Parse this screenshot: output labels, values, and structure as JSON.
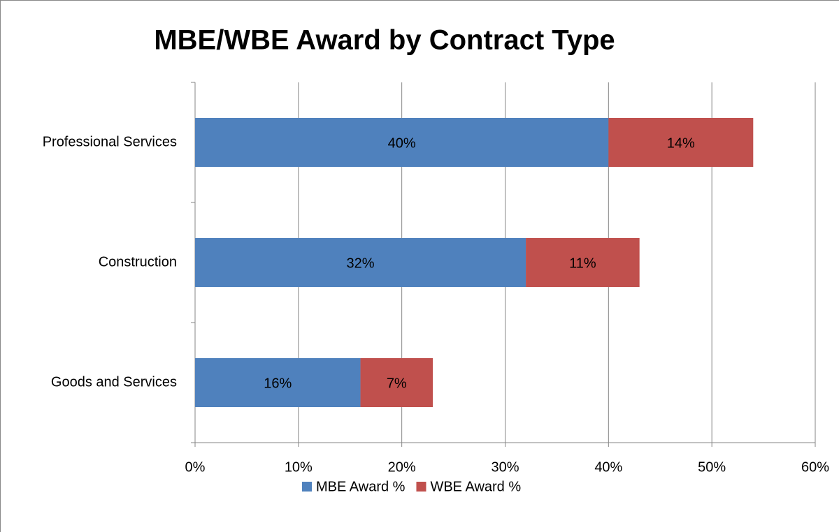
{
  "chart_data": {
    "type": "stacked-bar-horizontal",
    "title": "MBE/WBE Award by Contract Type",
    "categories": [
      "Professional Services",
      "Construction",
      "Goods and Services"
    ],
    "series": [
      {
        "name": "MBE Award %",
        "color": "#4f81bd",
        "values": [
          40,
          32,
          16
        ],
        "value_labels": [
          "40%",
          "32%",
          "16%"
        ]
      },
      {
        "name": "WBE Award %",
        "color": "#c0504d",
        "values": [
          14,
          11,
          7
        ],
        "value_labels": [
          "14%",
          "11%",
          "7%"
        ]
      }
    ],
    "xlim": [
      0,
      60
    ],
    "xticks": [
      {
        "value": 0,
        "label": "0%"
      },
      {
        "value": 10,
        "label": "10%"
      },
      {
        "value": 20,
        "label": "20%"
      },
      {
        "value": 30,
        "label": "30%"
      },
      {
        "value": 40,
        "label": "40%"
      },
      {
        "value": 50,
        "label": "50%"
      },
      {
        "value": 60,
        "label": "60%"
      }
    ],
    "grid": true,
    "legend": "bottom"
  }
}
